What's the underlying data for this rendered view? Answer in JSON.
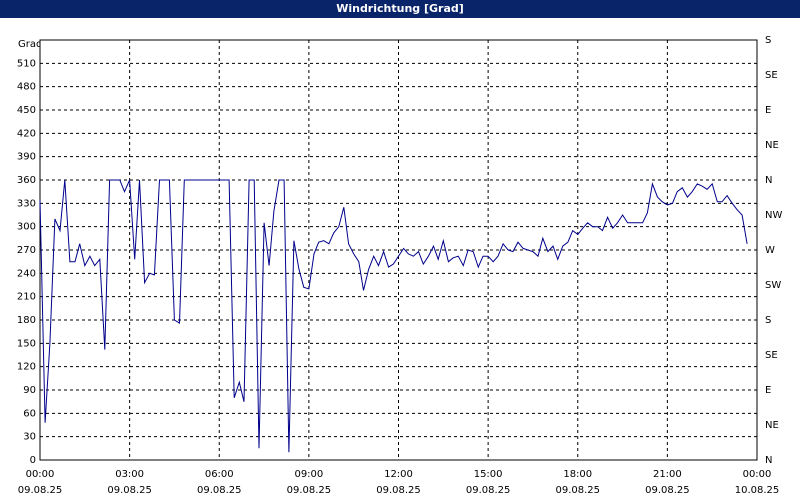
{
  "chart_data": {
    "type": "line",
    "title": "Windrichtung [Grad]",
    "ylabel": "Grad",
    "x": [
      0,
      0.17,
      0.33,
      0.5,
      0.67,
      0.83,
      1.0,
      1.17,
      1.33,
      1.5,
      1.67,
      1.83,
      2.0,
      2.17,
      2.33,
      2.5,
      2.67,
      2.83,
      3.0,
      3.17,
      3.33,
      3.5,
      3.67,
      3.83,
      4.0,
      4.17,
      4.33,
      4.5,
      4.67,
      4.83,
      5.0,
      5.5,
      6.0,
      6.33,
      6.5,
      6.67,
      6.83,
      7.0,
      7.17,
      7.33,
      7.5,
      7.67,
      7.83,
      8.0,
      8.17,
      8.33,
      8.5,
      8.67,
      8.83,
      9.0,
      9.17,
      9.33,
      9.5,
      9.67,
      9.83,
      10.0,
      10.17,
      10.33,
      10.5,
      10.67,
      10.83,
      11.0,
      11.17,
      11.33,
      11.5,
      11.67,
      11.83,
      12.0,
      12.17,
      12.33,
      12.5,
      12.67,
      12.83,
      13.0,
      13.17,
      13.33,
      13.5,
      13.67,
      13.83,
      14.0,
      14.17,
      14.33,
      14.5,
      14.67,
      14.83,
      15.0,
      15.17,
      15.33,
      15.5,
      15.67,
      15.83,
      16.0,
      16.17,
      16.33,
      16.5,
      16.67,
      16.83,
      17.0,
      17.17,
      17.33,
      17.5,
      17.67,
      17.83,
      18.0,
      18.17,
      18.33,
      18.5,
      18.67,
      18.83,
      19.0,
      19.17,
      19.33,
      19.5,
      19.67,
      19.83,
      20.0,
      20.17,
      20.33,
      20.5,
      20.67,
      20.83,
      21.0,
      21.17,
      21.33,
      21.5,
      21.67,
      21.83,
      22.0,
      22.17,
      22.33,
      22.5,
      22.67,
      22.83,
      23.0,
      23.17,
      23.33,
      23.5,
      23.67
    ],
    "series": [
      {
        "name": "Windrichtung",
        "color": "#00008b",
        "values": [
          334,
          48,
          150,
          310,
          295,
          360,
          255,
          255,
          278,
          250,
          262,
          250,
          258,
          142,
          360,
          360,
          360,
          345,
          360,
          258,
          360,
          228,
          240,
          238,
          360,
          360,
          360,
          180,
          176,
          360,
          360,
          360,
          360,
          360,
          80,
          100,
          75,
          360,
          360,
          15,
          305,
          250,
          320,
          360,
          360,
          10,
          282,
          245,
          222,
          220,
          265,
          280,
          282,
          278,
          292,
          300,
          325,
          278,
          265,
          255,
          218,
          245,
          262,
          250,
          268,
          248,
          252,
          262,
          272,
          265,
          262,
          268,
          252,
          262,
          275,
          258,
          282,
          255,
          260,
          262,
          250,
          270,
          268,
          248,
          262,
          262,
          255,
          262,
          278,
          270,
          268,
          280,
          272,
          270,
          268,
          262,
          285,
          268,
          275,
          258,
          275,
          280,
          295,
          290,
          298,
          305,
          300,
          300,
          295,
          312,
          298,
          305,
          315,
          305,
          305,
          305,
          305,
          318,
          355,
          338,
          332,
          328,
          330,
          345,
          350,
          338,
          345,
          355,
          352,
          348,
          355,
          332,
          332,
          340,
          330,
          322,
          315,
          278
        ]
      }
    ],
    "xlim": [
      0,
      24
    ],
    "xticks": [
      {
        "value": 0,
        "label": "00:00",
        "date": "09.08.25"
      },
      {
        "value": 3,
        "label": "03:00",
        "date": "09.08.25"
      },
      {
        "value": 6,
        "label": "06:00",
        "date": "09.08.25"
      },
      {
        "value": 9,
        "label": "09:00",
        "date": "09.08.25"
      },
      {
        "value": 12,
        "label": "12:00",
        "date": "09.08.25"
      },
      {
        "value": 15,
        "label": "15:00",
        "date": "09.08.25"
      },
      {
        "value": 18,
        "label": "18:00",
        "date": "09.08.25"
      },
      {
        "value": 21,
        "label": "21:00",
        "date": "09.08.25"
      },
      {
        "value": 24,
        "label": "00:00",
        "date": "10.08.25"
      }
    ],
    "ylim": [
      0,
      540
    ],
    "yticks": [
      0,
      30,
      60,
      90,
      120,
      150,
      180,
      210,
      240,
      270,
      300,
      330,
      360,
      390,
      420,
      450,
      480,
      510
    ],
    "y2lim": [
      0,
      540
    ],
    "y2ticks": [
      {
        "value": 0,
        "label": "N"
      },
      {
        "value": 45,
        "label": "NE"
      },
      {
        "value": 90,
        "label": "E"
      },
      {
        "value": 135,
        "label": "SE"
      },
      {
        "value": 180,
        "label": "S"
      },
      {
        "value": 225,
        "label": "SW"
      },
      {
        "value": 270,
        "label": "W"
      },
      {
        "value": 315,
        "label": "NW"
      },
      {
        "value": 360,
        "label": "N"
      },
      {
        "value": 405,
        "label": "NE"
      },
      {
        "value": 450,
        "label": "E"
      },
      {
        "value": 495,
        "label": "SE"
      },
      {
        "value": 540,
        "label": "S"
      }
    ],
    "grid": true
  }
}
